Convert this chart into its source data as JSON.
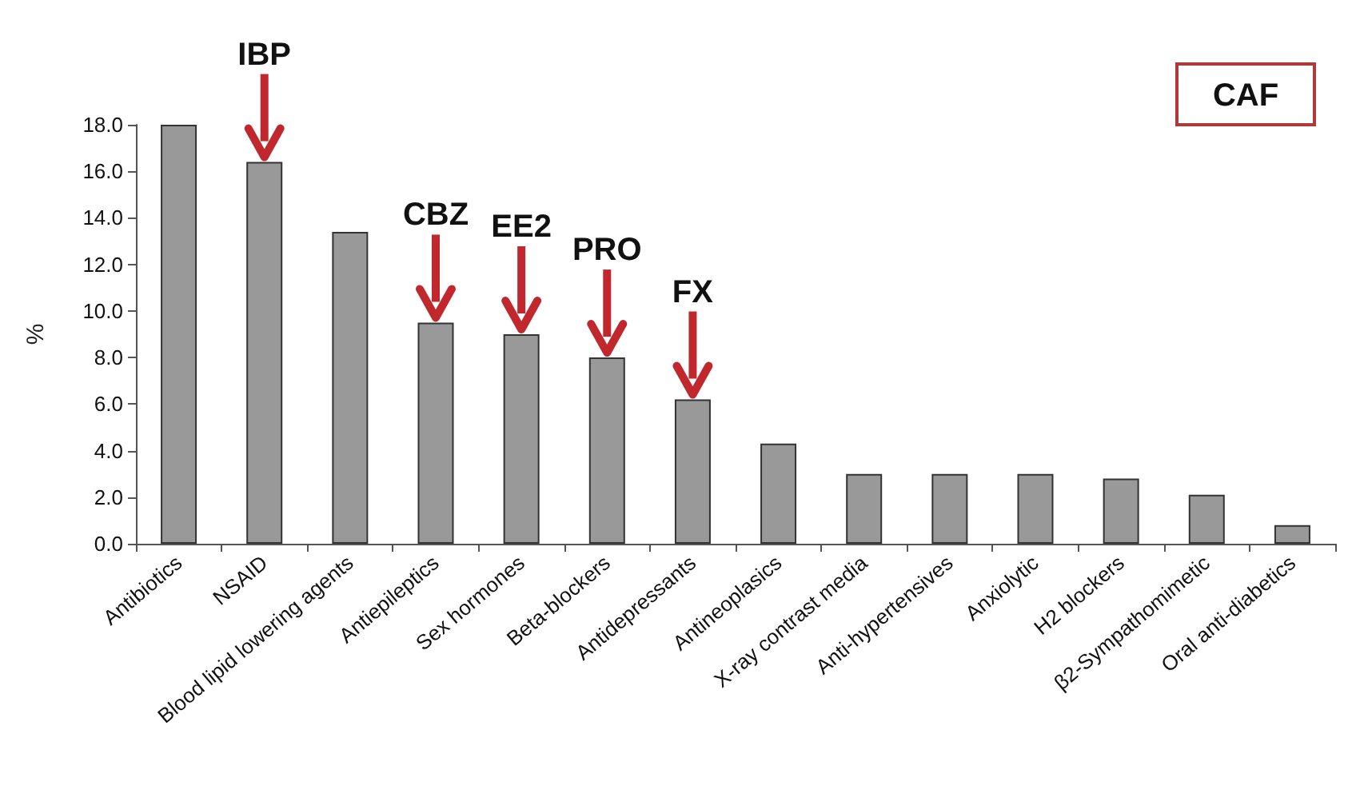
{
  "chart_data": {
    "type": "bar",
    "categories": [
      "Antibiotics",
      "NSAID",
      "Blood lipid lowering agents",
      "Antiepileptics",
      "Sex hormones",
      "Beta-blockers",
      "Antidepressants",
      "Antineoplasics",
      "X-ray contrast media",
      "Anti-hypertensives",
      "Anxiolytic",
      "H2 blockers",
      "β2-Sympathomimetic",
      "Oral anti-diabetics"
    ],
    "values": [
      18.0,
      16.4,
      13.4,
      9.5,
      9.0,
      8.0,
      6.2,
      4.3,
      3.0,
      3.0,
      3.0,
      2.8,
      2.1,
      0.8
    ],
    "color": "#999999",
    "ylabel": "%",
    "ylim": [
      0,
      18
    ],
    "yticks": [
      {
        "value": 0,
        "label": "0.0"
      },
      {
        "value": 2,
        "label": "2.0"
      },
      {
        "value": 4,
        "label": "4.0"
      },
      {
        "value": 6,
        "label": "6.0"
      },
      {
        "value": 8,
        "label": "8.0"
      },
      {
        "value": 10,
        "label": "10.0"
      },
      {
        "value": 12,
        "label": "12.0"
      },
      {
        "value": 14,
        "label": "14.0"
      },
      {
        "value": 16,
        "label": "16.0"
      },
      {
        "value": 18,
        "label": "18.0"
      }
    ],
    "grid": false,
    "annotations": [
      {
        "text": "IBP",
        "x": "NSAID",
        "y": 16.4
      },
      {
        "text": "CBZ",
        "x": "Antiepileptics",
        "y": 9.5
      },
      {
        "text": "EE2",
        "x": "Sex hormones",
        "y": 9.0
      },
      {
        "text": "PRO",
        "x": "Beta-blockers",
        "y": 8.0
      },
      {
        "text": "FX",
        "x": "Antidepressants",
        "y": 6.2
      },
      "CAF"
    ]
  }
}
